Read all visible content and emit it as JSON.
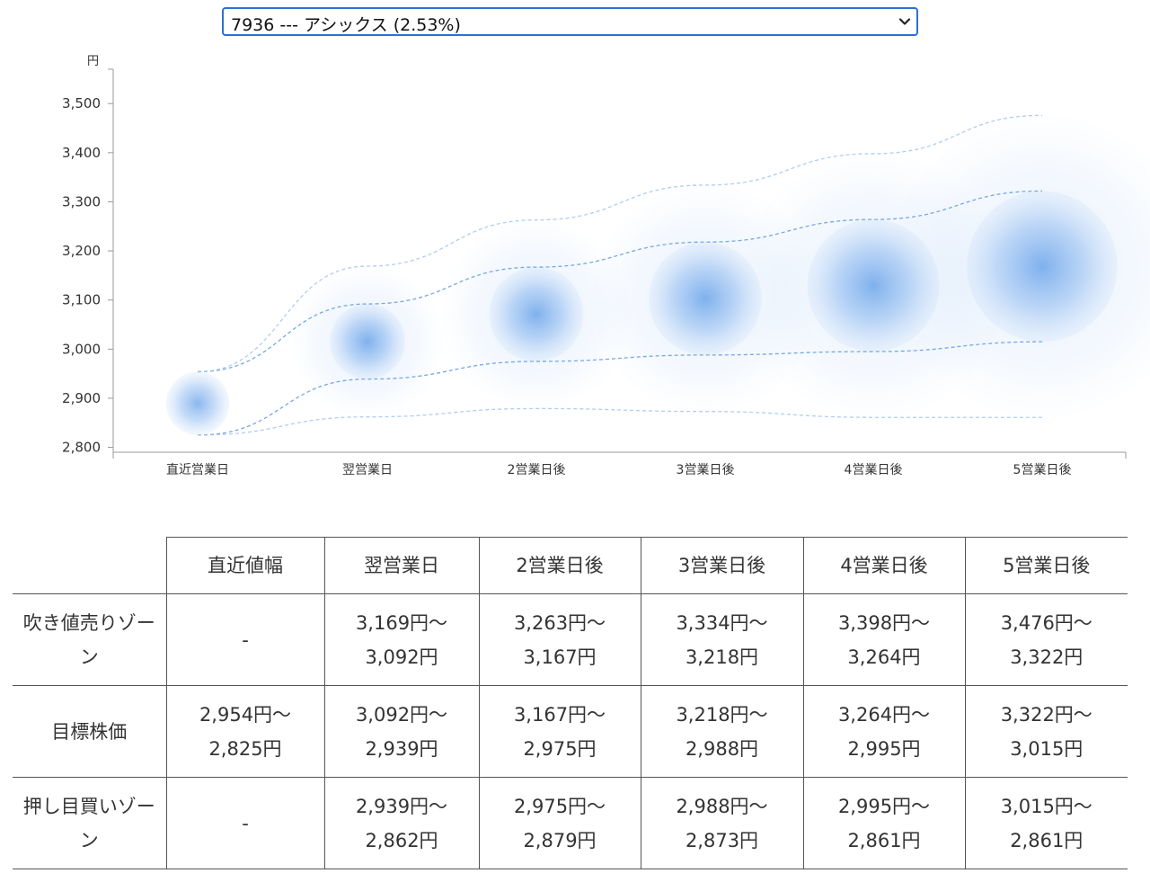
{
  "selector": {
    "selected": "7936 --- アシックス (2.53%)"
  },
  "chart_data": {
    "type": "bubble-range",
    "yunit": "円",
    "ylim": [
      2790,
      3570
    ],
    "yticks": [
      2800,
      2900,
      3000,
      3100,
      3200,
      3300,
      3400,
      3500
    ],
    "ytick_labels": [
      "2,800",
      "2,900",
      "3,000",
      "3,100",
      "3,200",
      "3,300",
      "3,400",
      "3,500"
    ],
    "categories": [
      "直近営業日",
      "翌営業日",
      "2営業日後",
      "3営業日後",
      "4営業日後",
      "5営業日後"
    ],
    "target_high": [
      2954,
      3092,
      3167,
      3218,
      3264,
      3322
    ],
    "target_low": [
      2825,
      2939,
      2975,
      2988,
      2995,
      3015
    ],
    "outer_high": [
      2954,
      3169,
      3263,
      3334,
      3398,
      3476
    ],
    "outer_low": [
      2825,
      2862,
      2879,
      2873,
      2861,
      2861
    ],
    "colors": {
      "bubble": "#2a7de1",
      "line": "#6fa3e3",
      "axis": "#999999"
    }
  },
  "table": {
    "headers": [
      "",
      "直近値幅",
      "翌営業日",
      "2営業日後",
      "3営業日後",
      "4営業日後",
      "5営業日後"
    ],
    "rows": [
      {
        "label": "吹き値売りゾーン",
        "cells": [
          {
            "a": "-",
            "b": ""
          },
          {
            "a": "3,169円〜",
            "b": "3,092円"
          },
          {
            "a": "3,263円〜",
            "b": "3,167円"
          },
          {
            "a": "3,334円〜",
            "b": "3,218円"
          },
          {
            "a": "3,398円〜",
            "b": "3,264円"
          },
          {
            "a": "3,476円〜",
            "b": "3,322円"
          }
        ]
      },
      {
        "label": "目標株価",
        "cells": [
          {
            "a": "2,954円〜",
            "b": "2,825円"
          },
          {
            "a": "3,092円〜",
            "b": "2,939円"
          },
          {
            "a": "3,167円〜",
            "b": "2,975円"
          },
          {
            "a": "3,218円〜",
            "b": "2,988円"
          },
          {
            "a": "3,264円〜",
            "b": "2,995円"
          },
          {
            "a": "3,322円〜",
            "b": "3,015円"
          }
        ]
      },
      {
        "label": "押し目買いゾーン",
        "cells": [
          {
            "a": "-",
            "b": ""
          },
          {
            "a": "2,939円〜",
            "b": "2,862円"
          },
          {
            "a": "2,975円〜",
            "b": "2,879円"
          },
          {
            "a": "2,988円〜",
            "b": "2,873円"
          },
          {
            "a": "2,995円〜",
            "b": "2,861円"
          },
          {
            "a": "3,015円〜",
            "b": "2,861円"
          }
        ]
      }
    ]
  }
}
